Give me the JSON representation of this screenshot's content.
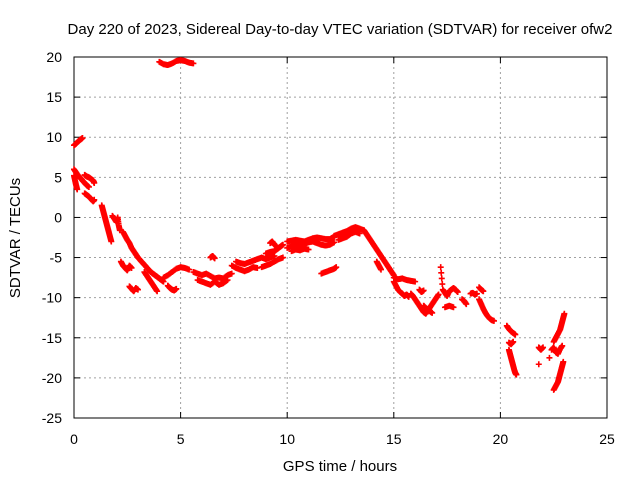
{
  "chart_data": {
    "type": "scatter",
    "title": "Day 220 of 2023, Sidereal Day-to-day VTEC variation (SDTVAR) for receiver ofw2",
    "xlabel": "GPS time / hours",
    "ylabel": "SDTVAR / TECUs",
    "xlim": [
      0,
      25
    ],
    "ylim": [
      -25,
      20
    ],
    "xticks": [
      0,
      5,
      10,
      15,
      20,
      25
    ],
    "yticks": [
      -25,
      -20,
      -15,
      -10,
      -5,
      0,
      5,
      10,
      15,
      20
    ],
    "grid": true,
    "marker": "+",
    "series_color": "#ff0000",
    "segments": [
      [
        [
          0.0,
          9.0
        ],
        [
          0.1,
          9.2
        ],
        [
          0.2,
          9.5
        ],
        [
          0.3,
          9.7
        ],
        [
          0.4,
          9.9
        ]
      ],
      [
        [
          0.0,
          6.0
        ],
        [
          0.1,
          5.6
        ],
        [
          0.2,
          5.2
        ],
        [
          0.3,
          4.9
        ],
        [
          0.4,
          4.6
        ],
        [
          0.5,
          4.3
        ],
        [
          0.6,
          4.0
        ],
        [
          0.7,
          3.8
        ]
      ],
      [
        [
          0.0,
          5.2
        ],
        [
          0.05,
          4.6
        ],
        [
          0.1,
          4.0
        ],
        [
          0.15,
          3.5
        ]
      ],
      [
        [
          0.5,
          5.3
        ],
        [
          0.6,
          5.1
        ],
        [
          0.7,
          5.0
        ],
        [
          0.8,
          4.8
        ],
        [
          0.9,
          4.6
        ],
        [
          0.95,
          4.3
        ]
      ],
      [
        [
          0.5,
          3.0
        ],
        [
          0.6,
          2.8
        ],
        [
          0.7,
          2.6
        ],
        [
          0.8,
          2.3
        ],
        [
          0.9,
          2.0
        ],
        [
          0.95,
          2.2
        ]
      ],
      [
        [
          1.3,
          1.5
        ],
        [
          1.35,
          1.0
        ],
        [
          1.4,
          0.5
        ],
        [
          1.45,
          0.0
        ],
        [
          1.5,
          -0.5
        ],
        [
          1.55,
          -1.0
        ],
        [
          1.6,
          -1.5
        ],
        [
          1.65,
          -2.0
        ],
        [
          1.7,
          -2.5
        ],
        [
          1.75,
          -3.0
        ]
      ],
      [
        [
          1.8,
          0.2
        ],
        [
          1.9,
          -0.2
        ],
        [
          2.0,
          -0.6
        ],
        [
          2.05,
          0.0
        ],
        [
          2.1,
          -1.0
        ],
        [
          2.15,
          -1.6
        ]
      ],
      [
        [
          2.3,
          -1.8
        ],
        [
          2.4,
          -2.3
        ],
        [
          2.5,
          -2.8
        ],
        [
          2.6,
          -3.2
        ],
        [
          2.7,
          -3.8
        ],
        [
          2.8,
          -4.2
        ],
        [
          2.9,
          -4.6
        ],
        [
          3.0,
          -5.0
        ],
        [
          3.1,
          -5.3
        ],
        [
          3.2,
          -5.6
        ],
        [
          3.3,
          -5.9
        ],
        [
          3.4,
          -6.2
        ],
        [
          3.5,
          -6.5
        ],
        [
          3.6,
          -6.8
        ],
        [
          3.7,
          -7.0
        ],
        [
          3.8,
          -7.2
        ],
        [
          3.9,
          -7.4
        ],
        [
          4.0,
          -7.6
        ],
        [
          4.1,
          -7.8
        ],
        [
          4.2,
          -8.0
        ]
      ],
      [
        [
          2.2,
          -5.5
        ],
        [
          2.3,
          -6.0
        ],
        [
          2.4,
          -6.3
        ],
        [
          2.5,
          -6.6
        ],
        [
          2.6,
          -6.0
        ],
        [
          2.7,
          -6.3
        ]
      ],
      [
        [
          2.6,
          -8.6
        ],
        [
          2.7,
          -8.9
        ],
        [
          2.8,
          -9.2
        ],
        [
          2.9,
          -8.8
        ],
        [
          3.0,
          -9.0
        ]
      ],
      [
        [
          3.3,
          -6.8
        ],
        [
          3.4,
          -7.2
        ],
        [
          3.5,
          -7.6
        ],
        [
          3.6,
          -8.0
        ],
        [
          3.7,
          -8.4
        ],
        [
          3.8,
          -8.8
        ],
        [
          3.9,
          -9.2
        ]
      ],
      [
        [
          4.2,
          -7.5
        ],
        [
          4.4,
          -7.2
        ],
        [
          4.6,
          -6.8
        ],
        [
          4.8,
          -6.4
        ],
        [
          5.0,
          -6.2
        ],
        [
          5.2,
          -6.3
        ],
        [
          5.4,
          -6.5
        ]
      ],
      [
        [
          4.4,
          -8.5
        ],
        [
          4.5,
          -8.8
        ],
        [
          4.6,
          -9.0
        ],
        [
          4.7,
          -9.1
        ],
        [
          4.8,
          -8.9
        ]
      ],
      [
        [
          4.0,
          19.4
        ],
        [
          4.2,
          19.1
        ],
        [
          4.4,
          19.0
        ],
        [
          4.6,
          19.2
        ],
        [
          4.8,
          19.5
        ],
        [
          5.0,
          19.6
        ],
        [
          5.2,
          19.5
        ],
        [
          5.4,
          19.3
        ],
        [
          5.6,
          19.2
        ]
      ],
      [
        [
          5.6,
          -6.8
        ],
        [
          5.8,
          -7.0
        ],
        [
          6.0,
          -7.2
        ],
        [
          6.2,
          -7.0
        ],
        [
          6.4,
          -7.3
        ],
        [
          6.6,
          -7.6
        ],
        [
          6.8,
          -7.5
        ],
        [
          7.0,
          -7.6
        ],
        [
          7.2,
          -7.2
        ],
        [
          7.4,
          -7.0
        ]
      ],
      [
        [
          5.8,
          -7.8
        ],
        [
          6.0,
          -8.0
        ],
        [
          6.2,
          -8.2
        ],
        [
          6.4,
          -8.4
        ],
        [
          6.6,
          -8.0
        ],
        [
          6.8,
          -8.4
        ],
        [
          7.0,
          -8.2
        ],
        [
          7.2,
          -7.8
        ]
      ],
      [
        [
          6.4,
          -5.0
        ],
        [
          6.5,
          -4.8
        ],
        [
          6.6,
          -5.1
        ]
      ],
      [
        [
          7.4,
          -6.0
        ],
        [
          7.6,
          -6.3
        ],
        [
          7.8,
          -6.5
        ],
        [
          8.0,
          -6.7
        ],
        [
          8.2,
          -6.5
        ],
        [
          8.4,
          -6.2
        ],
        [
          8.6,
          -6.3
        ]
      ],
      [
        [
          7.6,
          -5.5
        ],
        [
          7.8,
          -5.7
        ],
        [
          8.0,
          -5.8
        ],
        [
          8.2,
          -5.6
        ],
        [
          8.4,
          -5.4
        ],
        [
          8.6,
          -5.2
        ],
        [
          8.8,
          -5.0
        ],
        [
          9.0,
          -5.2
        ],
        [
          9.2,
          -5.0
        ],
        [
          9.4,
          -4.8
        ]
      ],
      [
        [
          8.8,
          -6.2
        ],
        [
          9.0,
          -6.0
        ],
        [
          9.2,
          -5.8
        ],
        [
          9.4,
          -5.5
        ],
        [
          9.6,
          -5.2
        ],
        [
          9.8,
          -5.0
        ]
      ],
      [
        [
          9.0,
          -4.5
        ],
        [
          9.2,
          -4.3
        ],
        [
          9.4,
          -4.2
        ],
        [
          9.5,
          -4.0
        ],
        [
          9.6,
          -3.8
        ],
        [
          9.7,
          -3.6
        ],
        [
          9.8,
          -3.4
        ]
      ],
      [
        [
          9.2,
          -3.2
        ],
        [
          9.3,
          -3.0
        ],
        [
          9.4,
          -3.4
        ],
        [
          9.5,
          -3.6
        ]
      ],
      [
        [
          10.0,
          -3.8
        ],
        [
          10.2,
          -3.6
        ],
        [
          10.4,
          -3.4
        ],
        [
          10.6,
          -3.5
        ],
        [
          10.8,
          -3.3
        ],
        [
          11.0,
          -3.1
        ],
        [
          11.2,
          -3.0
        ],
        [
          11.4,
          -3.2
        ],
        [
          11.6,
          -3.4
        ],
        [
          11.8,
          -3.5
        ],
        [
          12.0,
          -3.4
        ],
        [
          12.2,
          -3.1
        ]
      ],
      [
        [
          10.0,
          -3.0
        ],
        [
          10.2,
          -2.9
        ],
        [
          10.4,
          -2.8
        ],
        [
          10.6,
          -2.9
        ],
        [
          10.8,
          -3.0
        ],
        [
          11.0,
          -2.8
        ],
        [
          11.2,
          -2.6
        ],
        [
          11.4,
          -2.5
        ],
        [
          11.6,
          -2.6
        ],
        [
          11.8,
          -2.7
        ],
        [
          12.0,
          -2.7
        ],
        [
          12.2,
          -2.4
        ]
      ],
      [
        [
          10.2,
          -4.2
        ],
        [
          10.4,
          -4.0
        ],
        [
          10.6,
          -4.1
        ],
        [
          10.8,
          -3.9
        ],
        [
          11.0,
          -4.0
        ]
      ],
      [
        [
          11.6,
          -7.0
        ],
        [
          11.8,
          -6.8
        ],
        [
          12.0,
          -6.6
        ],
        [
          12.2,
          -6.4
        ],
        [
          12.3,
          -6.2
        ]
      ],
      [
        [
          12.2,
          -2.3
        ],
        [
          12.4,
          -2.1
        ],
        [
          12.6,
          -1.9
        ],
        [
          12.8,
          -1.7
        ],
        [
          13.0,
          -1.4
        ],
        [
          13.2,
          -1.2
        ],
        [
          13.4,
          -1.4
        ],
        [
          13.6,
          -1.6
        ]
      ],
      [
        [
          12.4,
          -2.8
        ],
        [
          12.6,
          -2.6
        ],
        [
          12.8,
          -2.4
        ],
        [
          13.0,
          -2.0
        ],
        [
          13.2,
          -1.8
        ],
        [
          13.4,
          -2.0
        ]
      ],
      [
        [
          13.6,
          -1.6
        ],
        [
          13.7,
          -2.0
        ],
        [
          13.8,
          -2.4
        ],
        [
          13.9,
          -2.8
        ],
        [
          14.0,
          -3.2
        ],
        [
          14.1,
          -3.6
        ],
        [
          14.2,
          -4.0
        ],
        [
          14.3,
          -4.4
        ],
        [
          14.4,
          -4.8
        ],
        [
          14.5,
          -5.2
        ],
        [
          14.6,
          -5.6
        ],
        [
          14.7,
          -6.0
        ],
        [
          14.8,
          -6.4
        ],
        [
          14.9,
          -6.8
        ],
        [
          15.0,
          -7.2
        ]
      ],
      [
        [
          14.2,
          -5.5
        ],
        [
          14.3,
          -6.0
        ],
        [
          14.4,
          -6.5
        ]
      ],
      [
        [
          15.0,
          -7.5
        ],
        [
          15.2,
          -7.7
        ],
        [
          15.4,
          -7.6
        ],
        [
          15.6,
          -7.8
        ],
        [
          15.8,
          -7.9
        ],
        [
          16.0,
          -8.0
        ]
      ],
      [
        [
          15.0,
          -8.0
        ],
        [
          15.1,
          -8.5
        ],
        [
          15.2,
          -9.0
        ],
        [
          15.3,
          -9.3
        ],
        [
          15.4,
          -9.5
        ],
        [
          15.5,
          -9.8
        ],
        [
          15.6,
          -9.6
        ],
        [
          15.7,
          -9.9
        ]
      ],
      [
        [
          15.8,
          -9.5
        ],
        [
          15.9,
          -9.8
        ],
        [
          16.0,
          -10.2
        ],
        [
          16.1,
          -10.6
        ],
        [
          16.2,
          -11.0
        ],
        [
          16.3,
          -11.4
        ],
        [
          16.4,
          -11.8
        ],
        [
          16.5,
          -12.0
        ],
        [
          16.6,
          -11.6
        ],
        [
          16.7,
          -11.2
        ],
        [
          16.8,
          -10.8
        ],
        [
          16.9,
          -10.4
        ],
        [
          17.0,
          -10.0
        ],
        [
          17.1,
          -9.6
        ]
      ],
      [
        [
          16.4,
          -11.0
        ],
        [
          16.5,
          -11.3
        ],
        [
          16.6,
          -11.5
        ],
        [
          16.7,
          -11.7
        ],
        [
          16.8,
          -11.9
        ]
      ],
      [
        [
          16.2,
          -9.0
        ],
        [
          16.3,
          -9.3
        ],
        [
          16.4,
          -9.1
        ]
      ],
      [
        [
          17.2,
          -6.2
        ],
        [
          17.3,
          -9.0
        ],
        [
          17.4,
          -9.4
        ],
        [
          17.5,
          -9.8
        ],
        [
          17.6,
          -9.2
        ],
        [
          17.7,
          -9.0
        ],
        [
          17.8,
          -8.8
        ],
        [
          17.9,
          -9.0
        ],
        [
          18.0,
          -9.3
        ]
      ],
      [
        [
          17.4,
          -11.2
        ],
        [
          17.6,
          -11.0
        ],
        [
          17.8,
          -11.2
        ]
      ],
      [
        [
          18.2,
          -10.2
        ],
        [
          18.3,
          -10.4
        ],
        [
          18.4,
          -10.8
        ]
      ],
      [
        [
          18.6,
          -9.5
        ],
        [
          18.7,
          -9.4
        ],
        [
          18.8,
          -9.6
        ],
        [
          18.9,
          -9.5
        ]
      ],
      [
        [
          19.0,
          -10.2
        ],
        [
          19.1,
          -10.8
        ],
        [
          19.2,
          -11.4
        ],
        [
          19.3,
          -11.9
        ],
        [
          19.4,
          -12.3
        ],
        [
          19.5,
          -12.6
        ],
        [
          19.6,
          -12.8
        ],
        [
          19.7,
          -12.9
        ]
      ],
      [
        [
          19.0,
          -8.7
        ],
        [
          19.1,
          -9.0
        ],
        [
          19.2,
          -9.2
        ]
      ],
      [
        [
          20.3,
          -13.5
        ],
        [
          20.4,
          -13.9
        ],
        [
          20.5,
          -14.2
        ],
        [
          20.6,
          -14.4
        ],
        [
          20.7,
          -14.6
        ]
      ],
      [
        [
          20.4,
          -15.6
        ],
        [
          20.5,
          -15.8
        ],
        [
          20.6,
          -15.5
        ]
      ],
      [
        [
          20.4,
          -16.5
        ],
        [
          20.45,
          -17.0
        ],
        [
          20.5,
          -17.5
        ],
        [
          20.55,
          -18.0
        ],
        [
          20.6,
          -18.5
        ],
        [
          20.65,
          -19.0
        ],
        [
          20.7,
          -19.4
        ],
        [
          20.75,
          -19.6
        ]
      ],
      [
        [
          21.8,
          -16.2
        ],
        [
          21.9,
          -16.5
        ],
        [
          22.0,
          -16.2
        ]
      ],
      [
        [
          21.8,
          -18.3
        ]
      ],
      [
        [
          22.3,
          -17.5
        ]
      ],
      [
        [
          22.5,
          -15.5
        ],
        [
          22.6,
          -15.0
        ],
        [
          22.7,
          -14.5
        ],
        [
          22.8,
          -14.0
        ],
        [
          22.85,
          -13.5
        ],
        [
          22.9,
          -13.0
        ],
        [
          22.95,
          -12.5
        ],
        [
          23.0,
          -12.0
        ]
      ],
      [
        [
          22.4,
          -16.5
        ],
        [
          22.5,
          -16.2
        ],
        [
          22.6,
          -16.8
        ],
        [
          22.7,
          -17.0
        ],
        [
          22.8,
          -16.4
        ],
        [
          22.9,
          -16.0
        ]
      ],
      [
        [
          22.5,
          -21.5
        ],
        [
          22.6,
          -21.0
        ],
        [
          22.7,
          -20.5
        ],
        [
          22.75,
          -20.0
        ],
        [
          22.8,
          -19.5
        ],
        [
          22.85,
          -19.0
        ],
        [
          22.9,
          -18.5
        ],
        [
          22.95,
          -18.0
        ]
      ]
    ]
  }
}
